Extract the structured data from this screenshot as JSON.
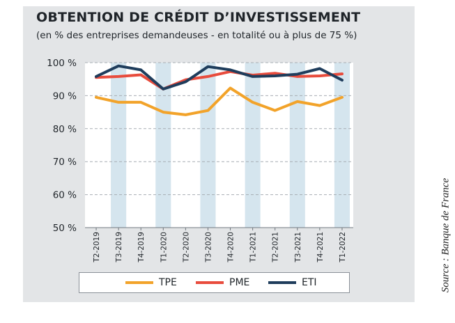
{
  "header": {
    "title": "OBTENTION DE CRÉDIT D’INVESTISSEMENT",
    "subtitle": "(en % des entreprises demandeuses - en totalité ou à plus de 75 %)"
  },
  "source": "Source : Banque de France",
  "chart_data": {
    "type": "line",
    "categories": [
      "T2-2019",
      "T3-2019",
      "T4-2019",
      "T1-2020",
      "T2-2020",
      "T3-2020",
      "T4-2020",
      "T1-2021",
      "T2-2021",
      "T3-2021",
      "T4-2021",
      "T1-2022"
    ],
    "yticks": [
      "100 %",
      "90 %",
      "80 %",
      "70 %",
      "60 %",
      "50 %"
    ],
    "ylim": [
      50,
      100
    ],
    "grid": "horizontal dashed",
    "shaded_bands": [
      "T3-2019",
      "T1-2020",
      "T3-2020",
      "T1-2021",
      "T3-2021",
      "T1-2022"
    ],
    "series": [
      {
        "name": "TPE",
        "color": "#f2a32a",
        "values": [
          89.5,
          88.0,
          88.0,
          85.0,
          84.2,
          85.5,
          92.3,
          88.0,
          85.5,
          88.2,
          87.0,
          89.5
        ]
      },
      {
        "name": "PME",
        "color": "#e84c3d",
        "values": [
          95.5,
          95.8,
          96.3,
          92.0,
          94.8,
          95.8,
          97.3,
          96.2,
          96.8,
          95.8,
          96.0,
          96.6
        ]
      },
      {
        "name": "ETI",
        "color": "#1f3d5c",
        "values": [
          95.8,
          99.0,
          97.8,
          92.0,
          94.2,
          98.8,
          97.8,
          95.8,
          96.0,
          96.5,
          98.2,
          94.7
        ]
      }
    ],
    "legend_position": "bottom"
  }
}
